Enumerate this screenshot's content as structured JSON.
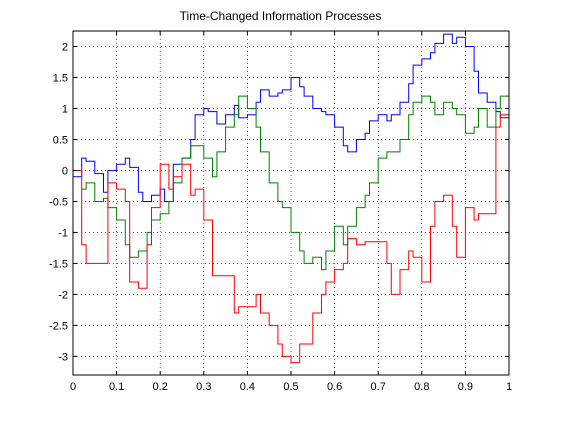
{
  "chart_data": {
    "type": "line",
    "title": "Time-Changed Information Processes",
    "xlabel": "",
    "ylabel": "",
    "xlim": [
      0,
      1
    ],
    "ylim": [
      -3.3,
      2.25
    ],
    "xticks": [
      0,
      0.1,
      0.2,
      0.3,
      0.4,
      0.5,
      0.6,
      0.7,
      0.8,
      0.9,
      1
    ],
    "xtick_labels": [
      "0",
      "0.1",
      "0.2",
      "0.3",
      "0.4",
      "0.5",
      "0.6",
      "0.7",
      "0.8",
      "0.9",
      "1"
    ],
    "yticks": [
      -3,
      -2.5,
      -2,
      -1.5,
      -1,
      -0.5,
      0,
      0.5,
      1,
      1.5,
      2
    ],
    "ytick_labels": [
      "-3",
      "-2.5",
      "-2",
      "-1.5",
      "-1",
      "-0.5",
      "0",
      "0.5",
      "1",
      "1.5",
      "2"
    ],
    "grid": true,
    "grid_style": "dotted",
    "series": [
      {
        "color": "#0000ff",
        "x": [
          0.0,
          0.02,
          0.03,
          0.05,
          0.07,
          0.08,
          0.1,
          0.12,
          0.13,
          0.15,
          0.16,
          0.18,
          0.2,
          0.21,
          0.23,
          0.25,
          0.27,
          0.28,
          0.3,
          0.31,
          0.33,
          0.35,
          0.37,
          0.38,
          0.4,
          0.42,
          0.43,
          0.45,
          0.47,
          0.48,
          0.5,
          0.52,
          0.53,
          0.55,
          0.57,
          0.58,
          0.6,
          0.62,
          0.63,
          0.65,
          0.67,
          0.68,
          0.7,
          0.72,
          0.73,
          0.75,
          0.77,
          0.78,
          0.8,
          0.82,
          0.83,
          0.85,
          0.87,
          0.88,
          0.9,
          0.92,
          0.93,
          0.95,
          0.97,
          0.98,
          1.0
        ],
        "y": [
          -0.1,
          0.2,
          0.15,
          -0.05,
          -0.35,
          0.0,
          0.1,
          0.2,
          0.05,
          -0.35,
          -0.5,
          -0.4,
          -0.3,
          -0.5,
          0.1,
          0.2,
          0.5,
          0.9,
          1.0,
          0.95,
          0.75,
          0.9,
          1.05,
          0.85,
          0.9,
          1.1,
          1.3,
          1.2,
          1.25,
          1.3,
          1.5,
          1.35,
          1.2,
          1.0,
          0.95,
          0.9,
          0.7,
          0.4,
          0.3,
          0.5,
          0.6,
          0.8,
          0.9,
          0.8,
          0.9,
          1.1,
          1.4,
          1.7,
          1.8,
          1.9,
          2.05,
          2.2,
          2.05,
          2.15,
          2.0,
          1.6,
          1.25,
          1.1,
          0.95,
          0.85,
          0.9
        ]
      },
      {
        "color": "#008000",
        "x": [
          0.02,
          0.03,
          0.05,
          0.07,
          0.08,
          0.1,
          0.12,
          0.13,
          0.15,
          0.17,
          0.18,
          0.2,
          0.22,
          0.23,
          0.25,
          0.27,
          0.28,
          0.3,
          0.32,
          0.33,
          0.35,
          0.37,
          0.38,
          0.4,
          0.42,
          0.43,
          0.45,
          0.47,
          0.48,
          0.5,
          0.52,
          0.53,
          0.55,
          0.57,
          0.58,
          0.6,
          0.62,
          0.63,
          0.65,
          0.67,
          0.68,
          0.7,
          0.72,
          0.73,
          0.75,
          0.77,
          0.78,
          0.8,
          0.82,
          0.83,
          0.85,
          0.87,
          0.88,
          0.9,
          0.92,
          0.93,
          0.95,
          0.97,
          0.98,
          1.0
        ],
        "y": [
          -0.3,
          -0.2,
          -0.5,
          -0.45,
          -0.6,
          -0.8,
          -1.2,
          -1.4,
          -1.3,
          -1.0,
          -0.8,
          -0.7,
          -0.5,
          -0.2,
          0.2,
          0.4,
          0.4,
          0.2,
          -0.1,
          0.3,
          0.7,
          0.9,
          1.2,
          1.0,
          0.7,
          0.3,
          -0.2,
          -0.5,
          -0.6,
          -1.0,
          -1.3,
          -1.5,
          -1.4,
          -1.6,
          -1.3,
          -0.9,
          -1.2,
          -0.9,
          -0.6,
          -0.4,
          -0.2,
          0.2,
          0.3,
          0.3,
          0.5,
          0.9,
          1.1,
          1.2,
          1.1,
          0.9,
          1.1,
          1.0,
          0.9,
          0.6,
          0.7,
          1.0,
          0.7,
          1.0,
          1.2,
          1.2
        ]
      },
      {
        "color": "#ff0000",
        "x": [
          0.0,
          0.02,
          0.03,
          0.05,
          0.07,
          0.08,
          0.1,
          0.12,
          0.13,
          0.15,
          0.17,
          0.18,
          0.2,
          0.22,
          0.23,
          0.25,
          0.27,
          0.28,
          0.3,
          0.32,
          0.33,
          0.35,
          0.37,
          0.38,
          0.4,
          0.42,
          0.43,
          0.45,
          0.47,
          0.48,
          0.5,
          0.52,
          0.53,
          0.55,
          0.57,
          0.58,
          0.6,
          0.62,
          0.63,
          0.65,
          0.67,
          0.68,
          0.7,
          0.72,
          0.73,
          0.75,
          0.77,
          0.78,
          0.8,
          0.82,
          0.83,
          0.85,
          0.87,
          0.88,
          0.9,
          0.92,
          0.93,
          0.95,
          0.97,
          0.98,
          1.0
        ],
        "y": [
          0.0,
          -1.2,
          -1.5,
          -1.5,
          -1.5,
          -0.2,
          -0.3,
          -0.5,
          -1.8,
          -1.9,
          -1.2,
          -0.6,
          0.1,
          -0.3,
          -0.1,
          0.1,
          -0.4,
          -0.3,
          -0.8,
          -1.7,
          -1.7,
          -1.7,
          -2.3,
          -2.2,
          -2.2,
          -2.0,
          -2.3,
          -2.5,
          -2.8,
          -3.0,
          -3.1,
          -2.8,
          -2.8,
          -2.3,
          -2.0,
          -1.8,
          -1.6,
          -1.5,
          -1.1,
          -1.2,
          -1.15,
          -1.15,
          -1.15,
          -1.5,
          -2.0,
          -1.6,
          -1.3,
          -1.4,
          -1.8,
          -0.9,
          -0.5,
          -0.4,
          -0.9,
          -1.4,
          -0.6,
          -0.8,
          -0.7,
          -0.7,
          0.7,
          0.9,
          1.0
        ]
      }
    ]
  }
}
